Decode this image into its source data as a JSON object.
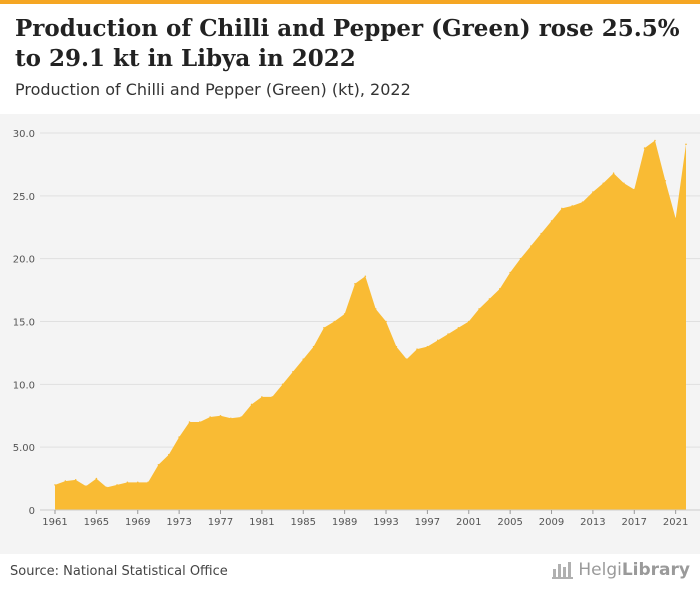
{
  "header": {
    "title": "Production of Chilli and Pepper (Green) rose 25.5% to 29.1 kt in Libya in 2022",
    "subtitle": "Production of Chilli and Pepper (Green) (kt), 2022"
  },
  "footer": {
    "source": "Source: National Statistical Office",
    "brand_light": "Helgi",
    "brand_bold": "Library"
  },
  "colors": {
    "area": "#f9bb34",
    "grid": "#e0e0e0",
    "accent": "#f5a623"
  },
  "chart_data": {
    "type": "area",
    "title": "Production of Chilli and Pepper (Green) rose 25.5% to 29.1 kt in Libya in 2022",
    "subtitle": "Production of Chilli and Pepper (Green) (kt), 2022",
    "xlabel": "",
    "ylabel": "",
    "ylim": [
      0,
      30
    ],
    "grid": true,
    "y_ticks": [
      {
        "value": 0,
        "label": "0"
      },
      {
        "value": 5,
        "label": "5.00"
      },
      {
        "value": 10,
        "label": "10.0"
      },
      {
        "value": 15,
        "label": "15.0"
      },
      {
        "value": 20,
        "label": "20.0"
      },
      {
        "value": 25,
        "label": "25.0"
      },
      {
        "value": 30,
        "label": "30.0"
      }
    ],
    "x_ticks": [
      "1961",
      "1965",
      "1969",
      "1973",
      "1977",
      "1981",
      "1985",
      "1989",
      "1993",
      "1997",
      "2001",
      "2005",
      "2009",
      "2013",
      "2017",
      "2021"
    ],
    "x": [
      1961,
      1962,
      1963,
      1964,
      1965,
      1966,
      1967,
      1968,
      1969,
      1970,
      1971,
      1972,
      1973,
      1974,
      1975,
      1976,
      1977,
      1978,
      1979,
      1980,
      1981,
      1982,
      1983,
      1984,
      1985,
      1986,
      1987,
      1988,
      1989,
      1990,
      1991,
      1992,
      1993,
      1994,
      1995,
      1996,
      1997,
      1998,
      1999,
      2000,
      2001,
      2002,
      2003,
      2004,
      2005,
      2006,
      2007,
      2008,
      2009,
      2010,
      2011,
      2012,
      2013,
      2014,
      2015,
      2016,
      2017,
      2018,
      2019,
      2020,
      2021,
      2022
    ],
    "values": [
      2.0,
      2.3,
      2.4,
      1.9,
      2.5,
      1.8,
      2.0,
      2.2,
      2.2,
      2.2,
      3.6,
      4.4,
      5.8,
      7.0,
      7.0,
      7.4,
      7.5,
      7.3,
      7.4,
      8.4,
      9.0,
      9.0,
      10.0,
      11.0,
      12.0,
      13.0,
      14.5,
      15.0,
      15.6,
      18.0,
      18.6,
      16.0,
      15.0,
      13.0,
      12.0,
      12.8,
      13.0,
      13.5,
      14.0,
      14.5,
      15.0,
      16.0,
      16.8,
      17.6,
      18.9,
      20.0,
      21.0,
      22.0,
      23.0,
      24.0,
      24.2,
      24.5,
      25.3,
      26.0,
      26.8,
      26.0,
      25.5,
      28.8,
      29.4,
      26.2,
      23.2,
      29.1
    ]
  }
}
